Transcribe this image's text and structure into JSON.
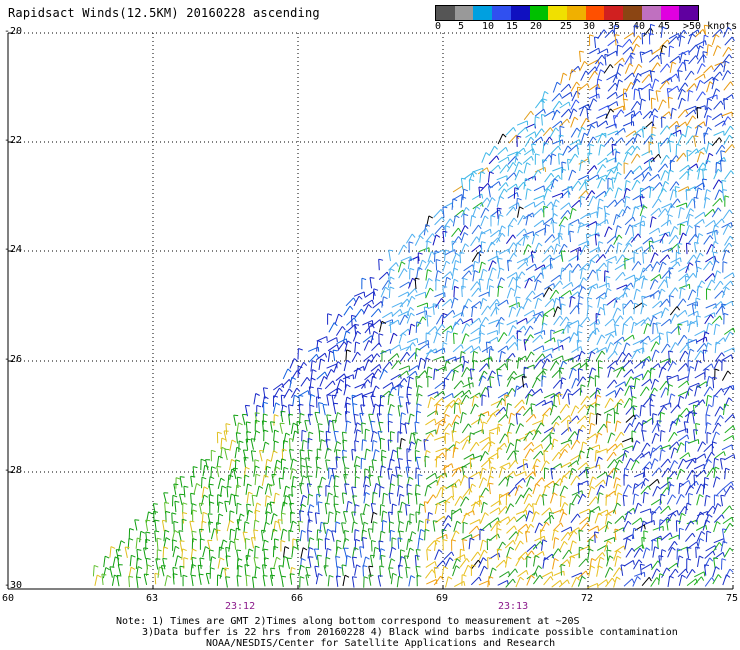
{
  "title": "Rapidsact Winds(12.5KM) 20160228 ascending",
  "colorbar": {
    "colors": [
      "#555555",
      "#999999",
      "#00a0e0",
      "#3050f0",
      "#1010c0",
      "#00c000",
      "#f0e000",
      "#f0b000",
      "#ff5000",
      "#d02020",
      "#8b4513",
      "#c070c0",
      "#e000e0",
      "#6000a0"
    ],
    "labels": [
      "0",
      "5",
      "10",
      "15",
      "20",
      "25",
      "30",
      "35",
      "40",
      "45",
      ">50 knots"
    ]
  },
  "axes": {
    "lat_labels": [
      "-20",
      "-22",
      "-24",
      "-26",
      "-28",
      "-30"
    ],
    "lon_labels": [
      "60",
      "63",
      "66",
      "69",
      "72",
      "75"
    ]
  },
  "times": [
    "23:12",
    "23:13"
  ],
  "notes": [
    "Note: 1) Times are GMT 2)Times along bottom correspond to measurement at ~20S",
    "3)Data buffer is 22 hrs from 20160228 4) Black wind barbs indicate possible contamination",
    "NOAA/NESDIS/Center for Satellite Applications and Research"
  ]
}
